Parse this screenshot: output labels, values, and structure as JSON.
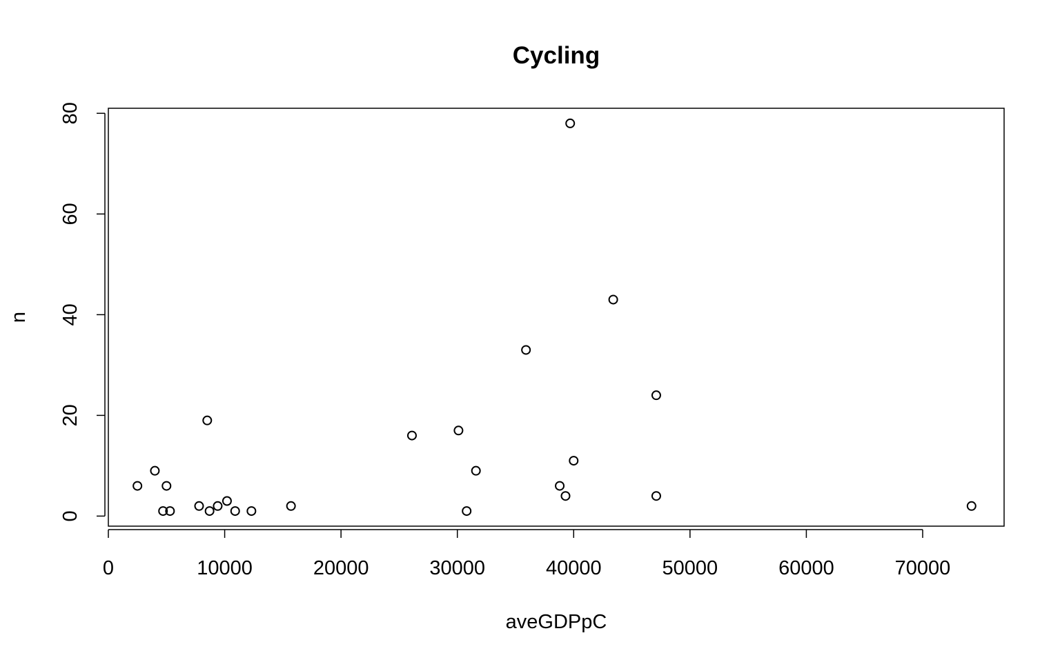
{
  "chart_data": {
    "type": "scatter",
    "title": "Cycling",
    "xlabel": "aveGDPpC",
    "ylabel": "n",
    "xlim": [
      0,
      77000
    ],
    "ylim": [
      -2,
      81
    ],
    "x_ticks": [
      0,
      10000,
      20000,
      30000,
      40000,
      50000,
      60000,
      70000
    ],
    "y_ticks": [
      0,
      20,
      40,
      60,
      80
    ],
    "grid": false,
    "points": [
      {
        "x": 2500,
        "y": 6
      },
      {
        "x": 4000,
        "y": 9
      },
      {
        "x": 4700,
        "y": 1
      },
      {
        "x": 5000,
        "y": 6
      },
      {
        "x": 5300,
        "y": 1
      },
      {
        "x": 7800,
        "y": 2
      },
      {
        "x": 8500,
        "y": 19
      },
      {
        "x": 8700,
        "y": 1
      },
      {
        "x": 9400,
        "y": 2
      },
      {
        "x": 10200,
        "y": 3
      },
      {
        "x": 10900,
        "y": 1
      },
      {
        "x": 12300,
        "y": 1
      },
      {
        "x": 15700,
        "y": 2
      },
      {
        "x": 26100,
        "y": 16
      },
      {
        "x": 30100,
        "y": 17
      },
      {
        "x": 30800,
        "y": 1
      },
      {
        "x": 31600,
        "y": 9
      },
      {
        "x": 35900,
        "y": 33
      },
      {
        "x": 38800,
        "y": 6
      },
      {
        "x": 39300,
        "y": 4
      },
      {
        "x": 39700,
        "y": 78
      },
      {
        "x": 40000,
        "y": 11
      },
      {
        "x": 43400,
        "y": 43
      },
      {
        "x": 47100,
        "y": 24
      },
      {
        "x": 47100,
        "y": 4
      },
      {
        "x": 74200,
        "y": 2
      }
    ]
  }
}
